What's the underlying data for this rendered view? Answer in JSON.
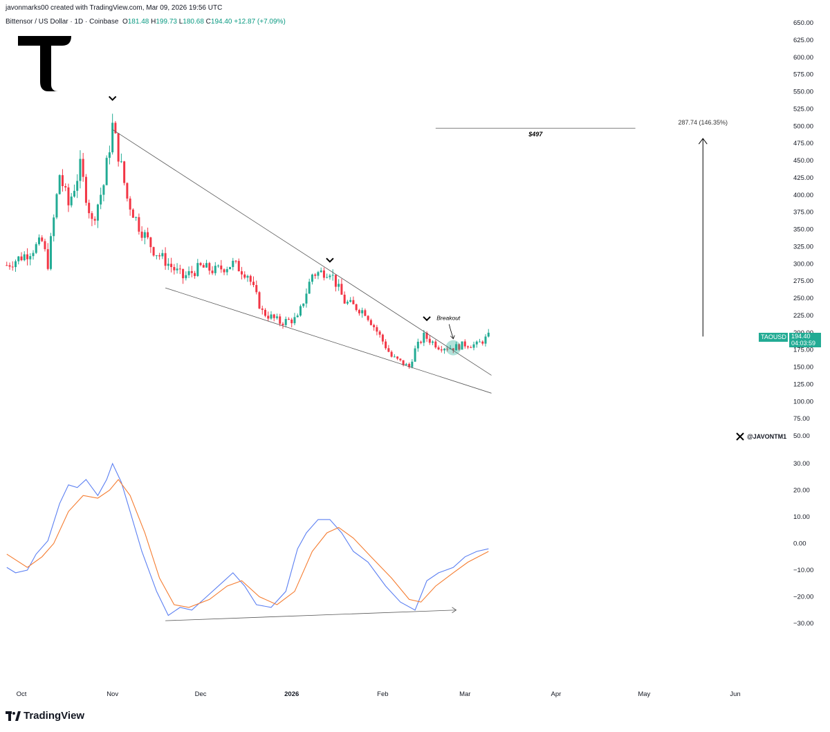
{
  "header": {
    "credit": "javonmarks00 created with TradingView.com, Mar 09, 2026 19:56 UTC",
    "symbol_line": "Bittensor / US Dollar · 1D · Coinbase",
    "o_label": "O",
    "o_value": "181.48",
    "h_label": "H",
    "h_value": "199.73",
    "l_label": "L",
    "l_value": "180.68",
    "c_label": "C",
    "c_value": "194.40",
    "change": "+12.87 (+7.09%)"
  },
  "price_tag": {
    "symbol": "TAOUSD",
    "price": "194.40",
    "countdown": "04:03:59"
  },
  "annotations": {
    "target_label": "$497",
    "measure_label": "287.74 (146.35%)",
    "breakout_label": "Breakout"
  },
  "branding": {
    "footer": "TradingView",
    "x_handle": "@JAVONTM1"
  },
  "colors": {
    "up": "#22ab94",
    "down": "#f23645",
    "line": "#787b86",
    "macd_fast": "#5b7ff2",
    "macd_slow": "#f57c30",
    "breakout_glow": "#22ab94"
  },
  "chart_data": [
    {
      "type": "candlestick",
      "title": "",
      "xlabel": "",
      "ylabel": "",
      "x_ticks": [
        "Oct",
        "Nov",
        "Dec",
        "2026",
        "Feb",
        "Mar",
        "Apr",
        "May",
        "Jun"
      ],
      "y_ticks": [
        "650.00",
        "625.00",
        "600.00",
        "575.00",
        "550.00",
        "525.00",
        "500.00",
        "475.00",
        "450.00",
        "425.00",
        "400.00",
        "375.00",
        "350.00",
        "325.00",
        "300.00",
        "275.00",
        "250.00",
        "225.00",
        "200.00",
        "175.00",
        "150.00",
        "125.00",
        "100.00",
        "75.00",
        "50.00"
      ],
      "ylim": [
        50,
        650
      ],
      "close_path": [
        [
          "2025-09-26",
          298
        ],
        [
          "2025-10-03",
          315
        ],
        [
          "2025-10-08",
          332
        ],
        [
          "2025-10-10",
          300
        ],
        [
          "2025-10-14",
          430
        ],
        [
          "2025-10-17",
          385
        ],
        [
          "2025-10-21",
          440
        ],
        [
          "2025-10-25",
          360
        ],
        [
          "2025-10-29",
          415
        ],
        [
          "2025-11-01",
          500
        ],
        [
          "2025-11-04",
          440
        ],
        [
          "2025-11-06",
          395
        ],
        [
          "2025-11-10",
          355
        ],
        [
          "2025-11-15",
          320
        ],
        [
          "2025-11-20",
          300
        ],
        [
          "2025-11-25",
          280
        ],
        [
          "2025-12-01",
          295
        ],
        [
          "2025-12-06",
          290
        ],
        [
          "2025-12-12",
          300
        ],
        [
          "2025-12-17",
          285
        ],
        [
          "2025-12-22",
          230
        ],
        [
          "2025-12-28",
          215
        ],
        [
          "2026-01-03",
          220
        ],
        [
          "2026-01-08",
          285
        ],
        [
          "2026-01-14",
          290
        ],
        [
          "2026-01-19",
          245
        ],
        [
          "2026-01-26",
          230
        ],
        [
          "2026-01-31",
          195
        ],
        [
          "2026-02-04",
          165
        ],
        [
          "2026-02-10",
          150
        ],
        [
          "2026-02-12",
          175
        ],
        [
          "2026-02-15",
          195
        ],
        [
          "2026-02-20",
          180
        ],
        [
          "2026-02-25",
          178
        ],
        [
          "2026-03-01",
          183
        ],
        [
          "2026-03-05",
          182
        ],
        [
          "2026-03-09",
          194.4
        ]
      ],
      "markers": [
        {
          "name": "top-marker-1",
          "date": "2025-11-01",
          "price": 540
        },
        {
          "name": "top-marker-2",
          "date": "2026-01-14",
          "price": 305
        },
        {
          "name": "top-marker-3",
          "date": "2026-02-16",
          "price": 220
        }
      ],
      "upper_trendline": [
        [
          "2025-11-01",
          495
        ],
        [
          "2026-03-10",
          138
        ]
      ],
      "lower_trendline": [
        [
          "2025-11-19",
          265
        ],
        [
          "2026-03-10",
          112
        ]
      ],
      "target_line": {
        "price": 497,
        "from": "2026-02-19",
        "to": "2026-04-28"
      },
      "measure_arrow": {
        "date": "2026-05-21",
        "from": 194.4,
        "to": 482
      },
      "breakout_point": {
        "date": "2026-02-25",
        "price": 178
      }
    },
    {
      "type": "line",
      "title": "",
      "y_ticks": [
        "30.00",
        "20.00",
        "10.00",
        "0.00",
        "−10.00",
        "−20.00",
        "−30.00"
      ],
      "ylim": [
        -30,
        30
      ],
      "series": [
        {
          "color": "#5b7ff2",
          "points": [
            [
              "2025-09-26",
              -9
            ],
            [
              "2025-09-29",
              -11
            ],
            [
              "2025-10-03",
              -10
            ],
            [
              "2025-10-06",
              -4
            ],
            [
              "2025-10-10",
              1
            ],
            [
              "2025-10-14",
              15
            ],
            [
              "2025-10-17",
              22
            ],
            [
              "2025-10-20",
              21
            ],
            [
              "2025-10-23",
              24
            ],
            [
              "2025-10-27",
              18
            ],
            [
              "2025-10-30",
              24
            ],
            [
              "2025-11-01",
              30
            ],
            [
              "2025-11-04",
              23
            ],
            [
              "2025-11-07",
              12
            ],
            [
              "2025-11-11",
              -3
            ],
            [
              "2025-11-16",
              -18
            ],
            [
              "2025-11-20",
              -27
            ],
            [
              "2025-11-24",
              -24
            ],
            [
              "2025-11-28",
              -25
            ],
            [
              "2025-12-03",
              -20
            ],
            [
              "2025-12-08",
              -15
            ],
            [
              "2025-12-12",
              -11
            ],
            [
              "2025-12-16",
              -16
            ],
            [
              "2025-12-20",
              -23
            ],
            [
              "2025-12-25",
              -24
            ],
            [
              "2025-12-30",
              -18
            ],
            [
              "2026-01-03",
              -2
            ],
            [
              "2026-01-06",
              4
            ],
            [
              "2026-01-10",
              9
            ],
            [
              "2026-01-14",
              9
            ],
            [
              "2026-01-18",
              4
            ],
            [
              "2026-01-22",
              -3
            ],
            [
              "2026-01-27",
              -7
            ],
            [
              "2026-02-02",
              -16
            ],
            [
              "2026-02-07",
              -22
            ],
            [
              "2026-02-12",
              -25
            ],
            [
              "2026-02-16",
              -14
            ],
            [
              "2026-02-20",
              -11
            ],
            [
              "2026-02-25",
              -9
            ],
            [
              "2026-03-01",
              -5
            ],
            [
              "2026-03-05",
              -3
            ],
            [
              "2026-03-09",
              -2
            ]
          ]
        },
        {
          "color": "#f57c30",
          "points": [
            [
              "2025-09-26",
              -4
            ],
            [
              "2025-10-03",
              -9
            ],
            [
              "2025-10-08",
              -5
            ],
            [
              "2025-10-12",
              0
            ],
            [
              "2025-10-17",
              12
            ],
            [
              "2025-10-22",
              18
            ],
            [
              "2025-10-27",
              17
            ],
            [
              "2025-10-31",
              20
            ],
            [
              "2025-11-03",
              24
            ],
            [
              "2025-11-07",
              18
            ],
            [
              "2025-11-12",
              4
            ],
            [
              "2025-11-17",
              -13
            ],
            [
              "2025-11-22",
              -23
            ],
            [
              "2025-11-27",
              -24
            ],
            [
              "2025-12-04",
              -21
            ],
            [
              "2025-12-10",
              -16
            ],
            [
              "2025-12-15",
              -14
            ],
            [
              "2025-12-21",
              -20
            ],
            [
              "2025-12-27",
              -23
            ],
            [
              "2026-01-02",
              -18
            ],
            [
              "2026-01-08",
              -3
            ],
            [
              "2026-01-13",
              4
            ],
            [
              "2026-01-17",
              6
            ],
            [
              "2026-01-22",
              2
            ],
            [
              "2026-01-28",
              -5
            ],
            [
              "2026-02-04",
              -13
            ],
            [
              "2026-02-10",
              -21
            ],
            [
              "2026-02-14",
              -22
            ],
            [
              "2026-02-19",
              -16
            ],
            [
              "2026-02-25",
              -11
            ],
            [
              "2026-03-02",
              -7
            ],
            [
              "2026-03-09",
              -3
            ]
          ]
        }
      ],
      "divergence_arrow": [
        [
          "2025-11-19",
          -29
        ],
        [
          "2026-02-26",
          -25
        ]
      ]
    }
  ]
}
